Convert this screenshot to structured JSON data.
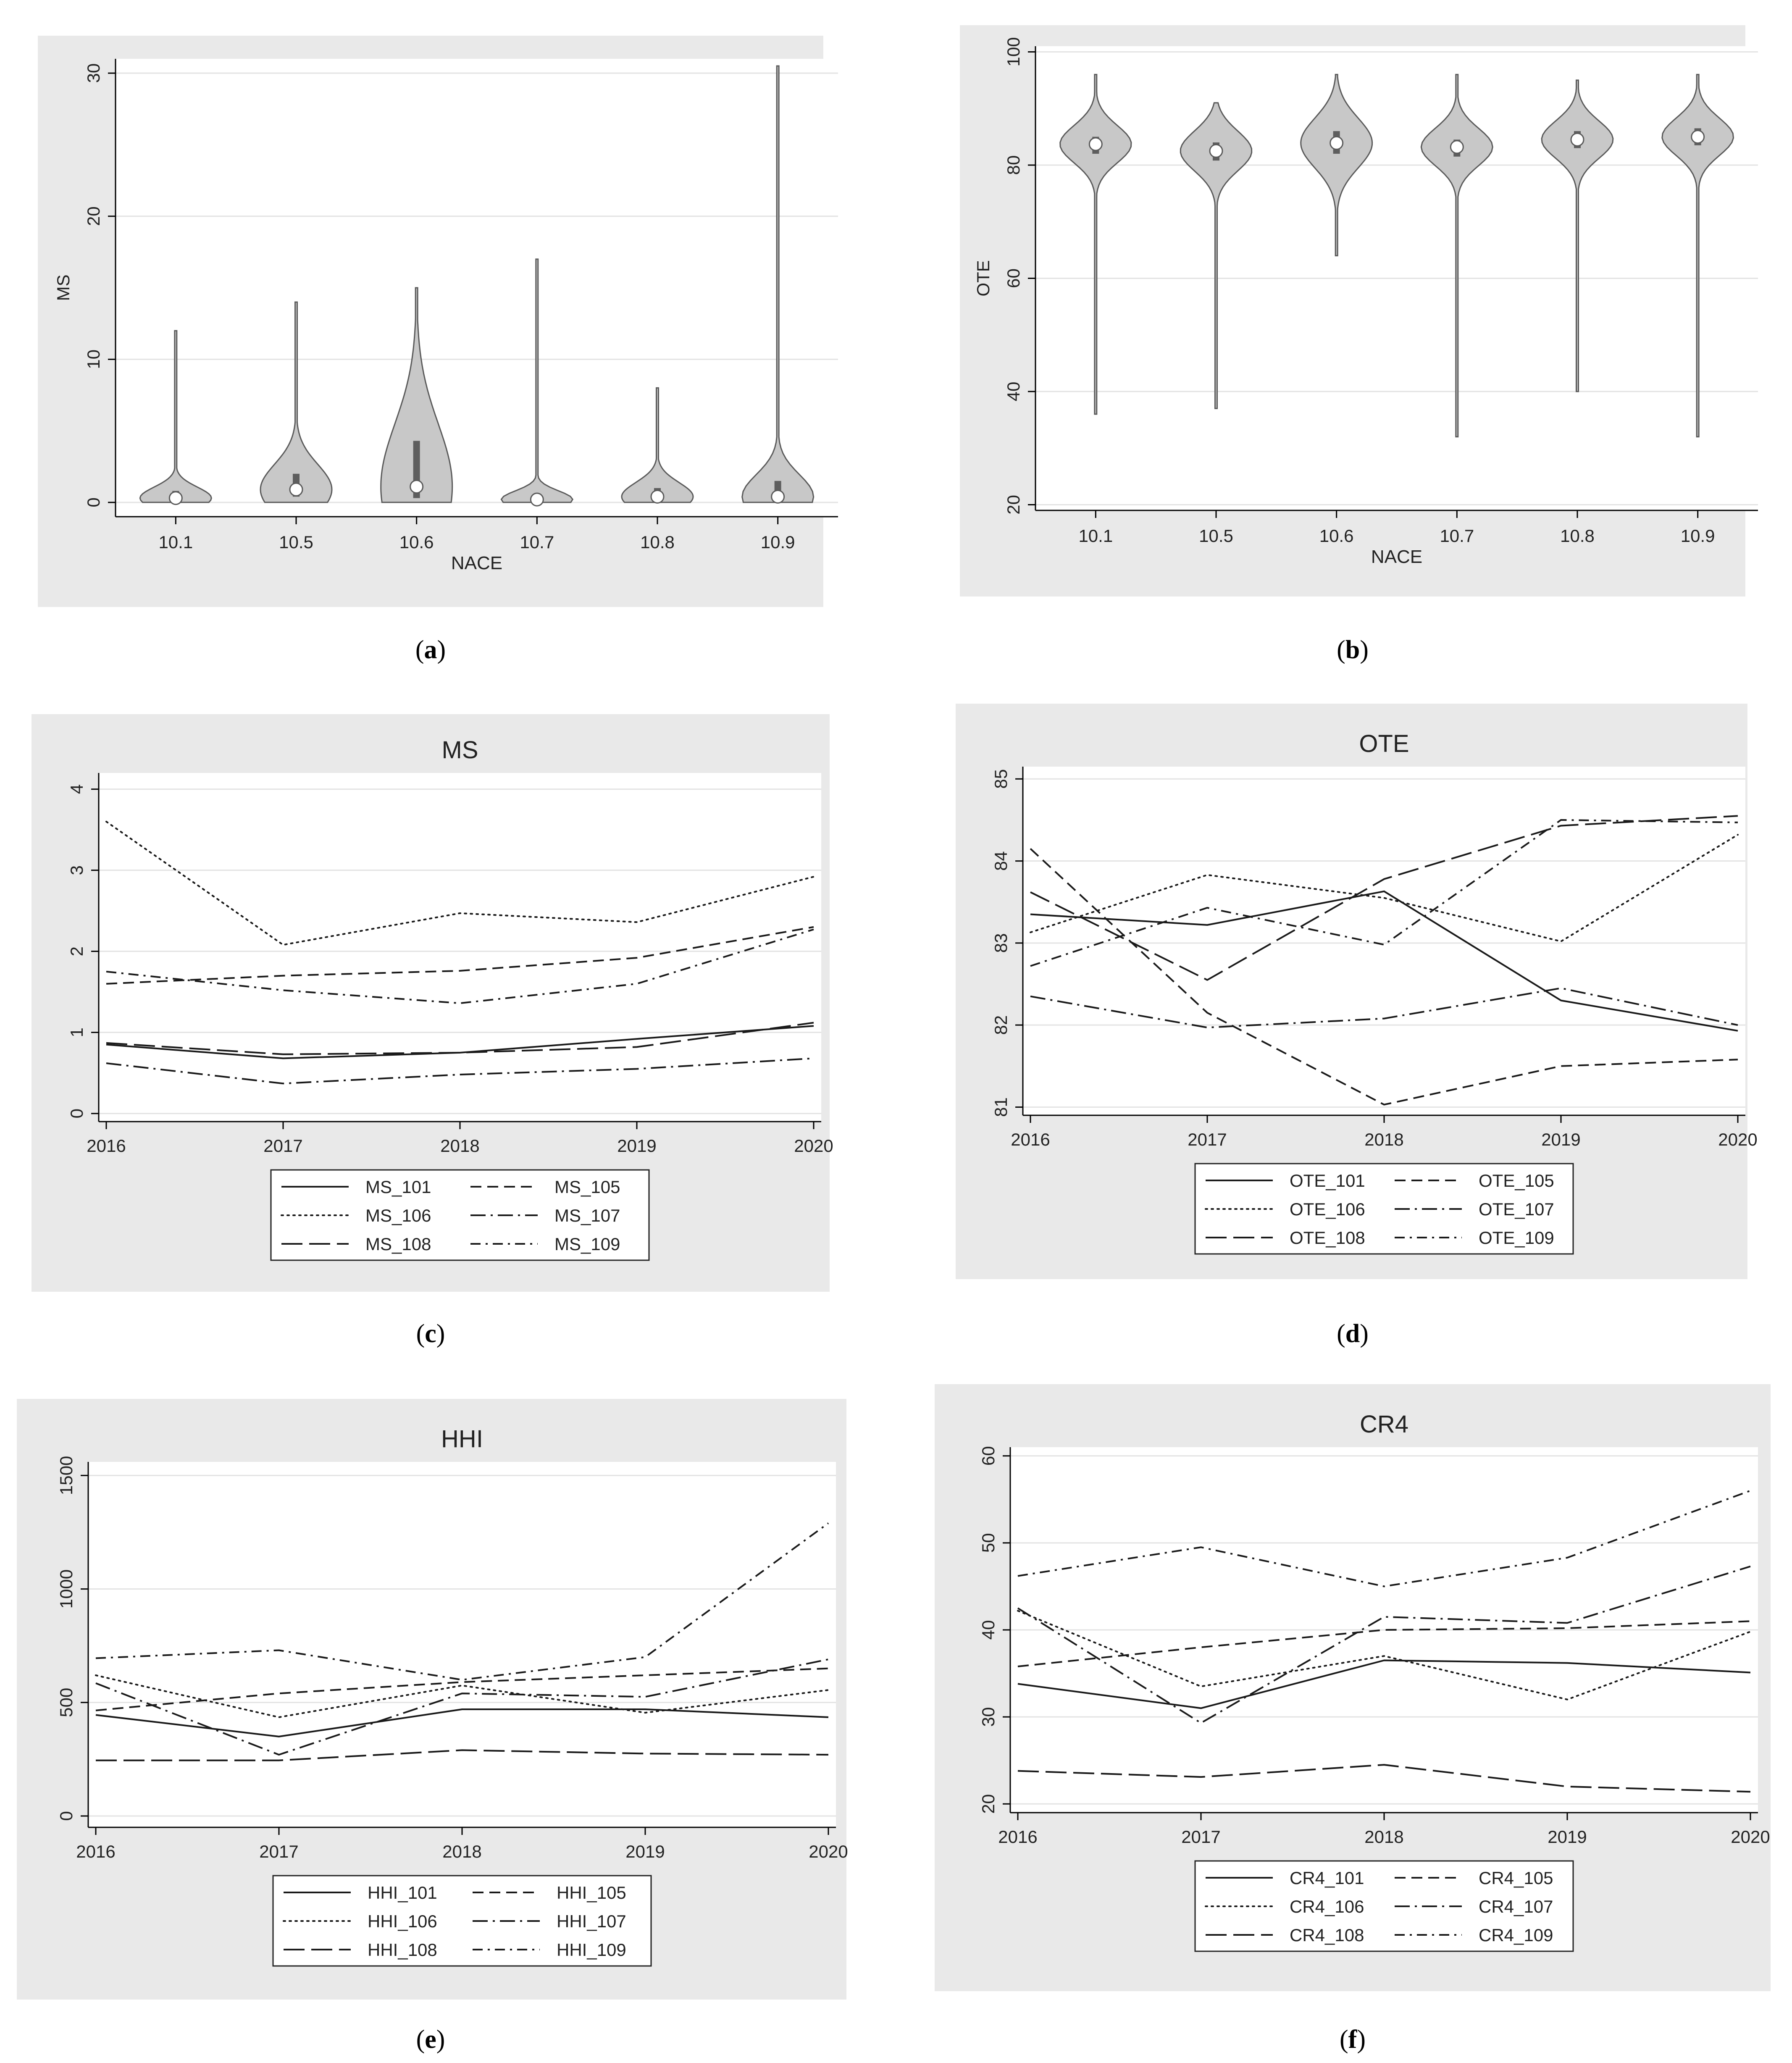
{
  "colors": {
    "panel_bg": "#e9e9e9",
    "plot_bg": "#ffffff",
    "grid": "#e3e3e3",
    "axis": "#000000",
    "violin_fill": "#c8c8c8",
    "violin_edge": "#5a5a5a",
    "iqr": "#5e5e5e",
    "median": "#ffffff"
  },
  "series_styles": {
    "101": "solid",
    "105": "dash",
    "106": "dot",
    "107": "dashdot",
    "108": "longdash",
    "109": "dashdot2"
  },
  "chart_data": [
    {
      "id": "a",
      "caption": "a",
      "type": "violin",
      "title": "",
      "xlabel": "NACE",
      "ylabel": "MS",
      "ylim": [
        -1,
        31
      ],
      "yticks": [
        0,
        10,
        20,
        30
      ],
      "ytick_labels": [
        "0",
        "10",
        "20",
        "30"
      ],
      "categories": [
        "10.1",
        "10.5",
        "10.6",
        "10.7",
        "10.8",
        "10.9"
      ],
      "medians": [
        0.3,
        0.9,
        1.1,
        0.2,
        0.4,
        0.4
      ],
      "q1": [
        0.1,
        0.4,
        0.3,
        0.05,
        0.1,
        0.1
      ],
      "q3": [
        0.8,
        2.0,
        4.3,
        0.6,
        1.0,
        1.5
      ],
      "mins": [
        0,
        0,
        0,
        0,
        0,
        0
      ],
      "maxs": [
        12,
        14,
        15,
        17,
        8,
        30.5
      ]
    },
    {
      "id": "b",
      "caption": "b",
      "type": "violin",
      "title": "",
      "xlabel": "NACE",
      "ylabel": "OTE",
      "ylim": [
        19,
        101
      ],
      "yticks": [
        20,
        40,
        60,
        80,
        100
      ],
      "ytick_labels": [
        "20",
        "40",
        "60",
        "80",
        "100"
      ],
      "categories": [
        "10.1",
        "10.5",
        "10.6",
        "10.7",
        "10.8",
        "10.9"
      ],
      "medians": [
        83.7,
        82.5,
        83.9,
        83.2,
        84.5,
        85.0
      ],
      "q1": [
        82.0,
        80.8,
        82.0,
        81.5,
        83.0,
        83.5
      ],
      "q3": [
        85.0,
        84.0,
        86.0,
        84.5,
        86.0,
        86.5
      ],
      "mins": [
        36,
        37,
        64,
        32,
        40,
        32
      ],
      "maxs": [
        96,
        91,
        96,
        96,
        95,
        96
      ]
    },
    {
      "id": "c",
      "caption": "c",
      "type": "line",
      "title": "MS",
      "xlabel": "",
      "ylabel": "",
      "ylim": [
        -0.1,
        4.2
      ],
      "yticks": [
        0,
        1,
        2,
        3,
        4
      ],
      "ytick_labels": [
        "0",
        "1",
        "2",
        "3",
        "4"
      ],
      "x": [
        2016,
        2017,
        2018,
        2019,
        2020
      ],
      "xtick_labels": [
        "2016",
        "2017",
        "2018",
        "2019",
        "2020"
      ],
      "series": [
        {
          "name": "MS_101",
          "key": "101",
          "values": [
            0.85,
            0.68,
            0.75,
            0.92,
            1.08
          ]
        },
        {
          "name": "MS_105",
          "key": "105",
          "values": [
            1.6,
            1.7,
            1.76,
            1.92,
            2.3
          ]
        },
        {
          "name": "MS_106",
          "key": "106",
          "values": [
            3.6,
            2.08,
            2.47,
            2.36,
            2.92
          ]
        },
        {
          "name": "MS_107",
          "key": "107",
          "values": [
            0.62,
            0.37,
            0.48,
            0.55,
            0.68
          ]
        },
        {
          "name": "MS_108",
          "key": "108",
          "values": [
            0.87,
            0.73,
            0.75,
            0.82,
            1.12
          ]
        },
        {
          "name": "MS_109",
          "key": "109",
          "values": [
            1.75,
            1.52,
            1.36,
            1.6,
            2.27
          ]
        }
      ]
    },
    {
      "id": "d",
      "caption": "d",
      "type": "line",
      "title": "OTE",
      "xlabel": "",
      "ylabel": "",
      "ylim": [
        80.9,
        85.15
      ],
      "yticks": [
        81,
        82,
        83,
        84,
        85
      ],
      "ytick_labels": [
        "81",
        "82",
        "83",
        "84",
        "85"
      ],
      "x": [
        2016,
        2017,
        2018,
        2019,
        2020
      ],
      "xtick_labels": [
        "2016",
        "2017",
        "2018",
        "2019",
        "2020"
      ],
      "series": [
        {
          "name": "OTE_101",
          "key": "101",
          "values": [
            83.35,
            83.22,
            83.63,
            82.3,
            81.93
          ]
        },
        {
          "name": "OTE_105",
          "key": "105",
          "values": [
            84.15,
            82.15,
            81.03,
            81.5,
            81.58
          ]
        },
        {
          "name": "OTE_106",
          "key": "106",
          "values": [
            83.13,
            83.83,
            83.55,
            83.02,
            84.32
          ]
        },
        {
          "name": "OTE_107",
          "key": "107",
          "values": [
            82.35,
            81.97,
            82.08,
            82.45,
            82.0
          ]
        },
        {
          "name": "OTE_108",
          "key": "108",
          "values": [
            83.62,
            82.55,
            83.78,
            84.43,
            84.55
          ]
        },
        {
          "name": "OTE_109",
          "key": "109",
          "values": [
            82.72,
            83.43,
            82.98,
            84.5,
            84.47
          ]
        }
      ]
    },
    {
      "id": "e",
      "caption": "e",
      "type": "line",
      "title": "HHI",
      "xlabel": "",
      "ylabel": "",
      "ylim": [
        -50,
        1560
      ],
      "yticks": [
        0,
        500,
        1000,
        1500
      ],
      "ytick_labels": [
        "0",
        "500",
        "1000",
        "1500"
      ],
      "x": [
        2016,
        2017,
        2018,
        2019,
        2020
      ],
      "xtick_labels": [
        "2016",
        "2017",
        "2018",
        "2019",
        "2020"
      ],
      "series": [
        {
          "name": "HHI_101",
          "key": "101",
          "values": [
            445,
            350,
            470,
            470,
            435
          ]
        },
        {
          "name": "HHI_105",
          "key": "105",
          "values": [
            465,
            540,
            590,
            620,
            650
          ]
        },
        {
          "name": "HHI_106",
          "key": "106",
          "values": [
            620,
            435,
            575,
            455,
            555
          ]
        },
        {
          "name": "HHI_107",
          "key": "107",
          "values": [
            585,
            270,
            540,
            525,
            690
          ]
        },
        {
          "name": "HHI_108",
          "key": "108",
          "values": [
            245,
            245,
            290,
            275,
            270
          ]
        },
        {
          "name": "HHI_109",
          "key": "109",
          "values": [
            695,
            730,
            600,
            700,
            1290
          ]
        }
      ]
    },
    {
      "id": "f",
      "caption": "f",
      "type": "line",
      "title": "CR4",
      "xlabel": "",
      "ylabel": "",
      "ylim": [
        19,
        61
      ],
      "yticks": [
        20,
        30,
        40,
        50,
        60
      ],
      "ytick_labels": [
        "20",
        "30",
        "40",
        "50",
        "60"
      ],
      "x": [
        2016,
        2017,
        2018,
        2019,
        2020
      ],
      "xtick_labels": [
        "2016",
        "2017",
        "2018",
        "2019",
        "2020"
      ],
      "series": [
        {
          "name": "CR4_101",
          "key": "101",
          "values": [
            33.8,
            31.0,
            36.5,
            36.2,
            35.1
          ]
        },
        {
          "name": "CR4_105",
          "key": "105",
          "values": [
            35.8,
            38.0,
            40.0,
            40.2,
            41.0
          ]
        },
        {
          "name": "CR4_106",
          "key": "106",
          "values": [
            42.2,
            33.5,
            37.0,
            32.0,
            39.8
          ]
        },
        {
          "name": "CR4_107",
          "key": "107",
          "values": [
            42.5,
            29.3,
            41.5,
            40.8,
            47.3
          ]
        },
        {
          "name": "CR4_108",
          "key": "108",
          "values": [
            23.8,
            23.1,
            24.5,
            22.0,
            21.4
          ]
        },
        {
          "name": "CR4_109",
          "key": "109",
          "values": [
            46.2,
            49.5,
            45.0,
            48.3,
            56.0
          ]
        }
      ]
    }
  ]
}
